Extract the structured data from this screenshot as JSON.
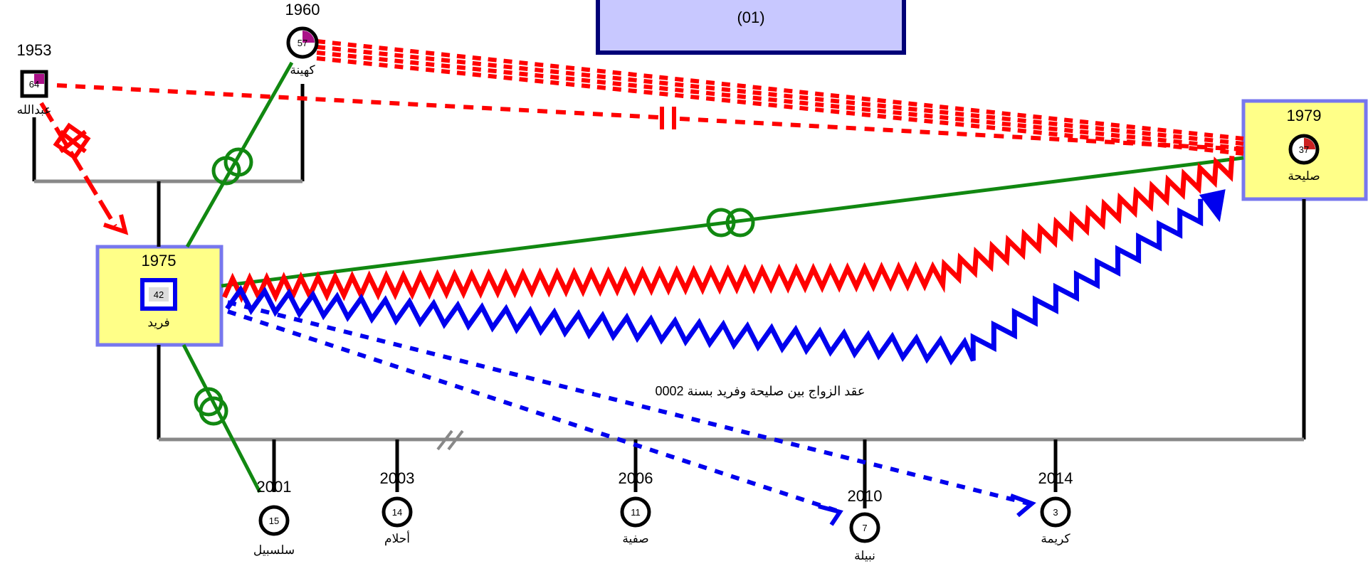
{
  "title_box": {
    "line2": "(01)"
  },
  "people": [
    {
      "key": "abdallah",
      "name": "عبدالله",
      "year": "1953",
      "age": "64",
      "shape": "square",
      "sex": "male"
    },
    {
      "key": "kahina",
      "name": "كهينة",
      "year": "1960",
      "age": "57",
      "shape": "circle",
      "sex": "female"
    },
    {
      "key": "farid",
      "name": "فريد",
      "year": "1975",
      "age": "42",
      "shape": "square",
      "sex": "male"
    },
    {
      "key": "saliha",
      "name": "صليحة",
      "year": "1979",
      "age": "37",
      "shape": "circle",
      "sex": "female"
    },
    {
      "key": "salsabil",
      "name": "سلسبيل",
      "year": "2001",
      "age": "15",
      "shape": "circle",
      "sex": "female"
    },
    {
      "key": "ahlam",
      "name": "أحلام",
      "year": "2003",
      "age": "14",
      "shape": "circle",
      "sex": "female"
    },
    {
      "key": "safia",
      "name": "صفية",
      "year": "2006",
      "age": "11",
      "shape": "circle",
      "sex": "female"
    },
    {
      "key": "nabila",
      "name": "نبيلة",
      "year": "2010",
      "age": "7",
      "shape": "circle",
      "sex": "female"
    },
    {
      "key": "karima",
      "name": "كريمة",
      "year": "2014",
      "age": "3",
      "shape": "circle",
      "sex": "female"
    }
  ],
  "annotation": "عقد الزواج بين صليحة وفريد بسنة 0002",
  "colors": {
    "hostile": "#ff0000",
    "abuse": "#0000ee",
    "close": "#118811",
    "family_line": "#888888",
    "highlight_fill": "#ffff88",
    "highlight_border": "#7777ee",
    "title_fill": "#c8c8ff",
    "title_border": "#000077"
  }
}
